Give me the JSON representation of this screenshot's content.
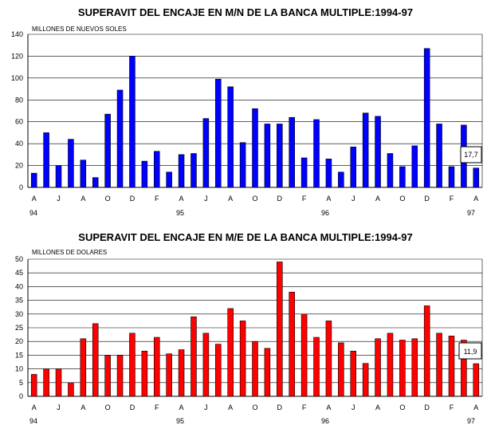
{
  "chart_data": [
    {
      "type": "bar",
      "title": "SUPERAVIT DEL ENCAJE EN M/N DE LA BANCA MULTIPLE:1994-97",
      "unit_label": "MILLONES DE NUEVOS SOLES",
      "ylim": [
        0,
        140
      ],
      "yticks": [
        "0",
        "20",
        "40",
        "60",
        "80",
        "100",
        "120",
        "140"
      ],
      "grid": true,
      "color": "#0000ff",
      "month_ticks": [
        "A",
        "J",
        "A",
        "O",
        "D",
        "F",
        "A",
        "J",
        "A",
        "O",
        "D",
        "F",
        "A",
        "J",
        "A",
        "O",
        "D",
        "F",
        "A"
      ],
      "year_ticks": [
        "94",
        "95",
        "96",
        "97"
      ],
      "values": [
        13,
        50,
        20,
        44,
        25,
        9,
        67,
        89,
        120,
        24,
        33,
        14,
        30,
        31,
        63,
        99,
        92,
        41,
        72,
        58,
        58,
        64,
        27,
        62,
        26,
        14,
        37,
        68,
        65,
        31,
        19,
        38,
        127,
        58,
        19,
        57,
        17.7
      ],
      "callout": "17,7"
    },
    {
      "type": "bar",
      "title": "SUPERAVIT DEL ENCAJE EN M/E DE LA BANCA MULTIPLE:1994-97",
      "unit_label": "MILLONES DE DOLARES",
      "ylim": [
        0,
        50
      ],
      "yticks": [
        "0",
        "5",
        "10",
        "15",
        "20",
        "25",
        "30",
        "35",
        "40",
        "45",
        "50"
      ],
      "grid": true,
      "color": "#ff0000",
      "month_ticks": [
        "A",
        "J",
        "A",
        "O",
        "D",
        "F",
        "A",
        "J",
        "A",
        "O",
        "D",
        "F",
        "A",
        "J",
        "A",
        "O",
        "D",
        "F",
        "A"
      ],
      "year_ticks": [
        "94",
        "95",
        "96",
        "97"
      ],
      "values": [
        8,
        10,
        10,
        5,
        21,
        26.5,
        15,
        15,
        23,
        16.5,
        21.5,
        15.5,
        17,
        29,
        23,
        19,
        32,
        27.5,
        20,
        17.5,
        49,
        38,
        30,
        21.5,
        27.5,
        19.5,
        16.5,
        12,
        21,
        23,
        20.5,
        21,
        33,
        23,
        22,
        20.5,
        11.9
      ],
      "callout": "11,9"
    }
  ]
}
